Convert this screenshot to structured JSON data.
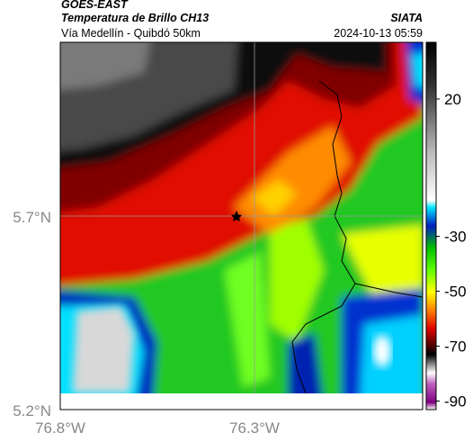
{
  "header": {
    "source": "GOES-EAST",
    "title": "Temperatura de Brillo CH13",
    "org": "SIATA",
    "subtitle": "Vía Medellín - Quibdó 50km",
    "timestamp": "2024-10-13 05:59"
  },
  "map": {
    "lat_labels": [
      "5.7°N",
      "5.2°N"
    ],
    "lon_labels": [
      "76.8°W",
      "76.3°W"
    ],
    "colorbar_ticks": [
      20,
      -30,
      -50,
      -70,
      -90
    ]
  }
}
